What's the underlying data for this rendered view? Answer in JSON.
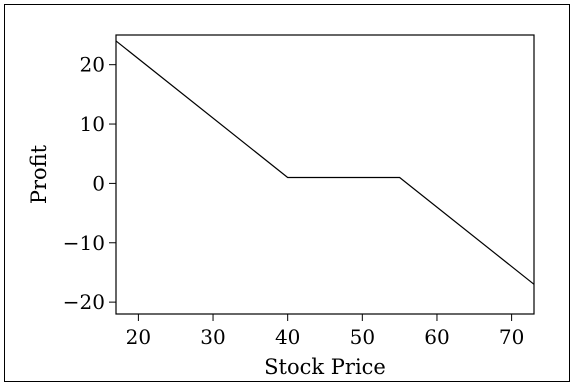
{
  "chart_data": {
    "type": "line",
    "title": "",
    "xlabel": "Stock Price",
    "ylabel": "Profit",
    "xlim": [
      17,
      73
    ],
    "ylim": [
      -22,
      25
    ],
    "x_ticks": [
      20,
      30,
      40,
      50,
      60,
      70
    ],
    "y_ticks": [
      -20,
      -10,
      0,
      10,
      20
    ],
    "x_tick_labels": [
      "20",
      "30",
      "40",
      "50",
      "60",
      "70"
    ],
    "y_tick_labels": [
      "−20",
      "−10",
      "0",
      "10",
      "20"
    ],
    "grid": false,
    "series": [
      {
        "x": [
          17,
          40,
          55,
          73
        ],
        "y": [
          24,
          1,
          1,
          -17
        ]
      }
    ]
  }
}
